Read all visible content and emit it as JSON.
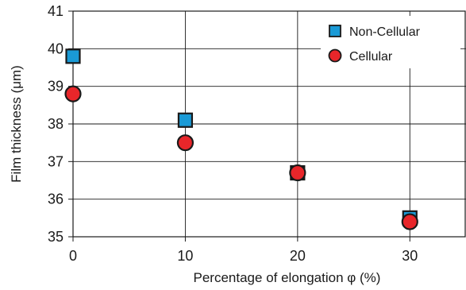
{
  "chart_data": {
    "type": "scatter",
    "xlabel": "Percentage of elongation φ (%)",
    "ylabel": "Film thickness (μm)",
    "xlim": [
      0,
      35
    ],
    "ylim": [
      35,
      41
    ],
    "x_ticks": [
      "0",
      "10",
      "20",
      "30"
    ],
    "y_ticks": [
      "35",
      "36",
      "37",
      "38",
      "39",
      "40",
      "41"
    ],
    "grid": true,
    "legend_position": "top-right",
    "series": [
      {
        "name": "Non-Cellular",
        "marker": "square",
        "color": "#1a9ad6",
        "points": [
          {
            "x": 0,
            "y": 39.8
          },
          {
            "x": 10,
            "y": 38.1
          },
          {
            "x": 20,
            "y": 36.7
          },
          {
            "x": 30,
            "y": 35.5
          }
        ]
      },
      {
        "name": "Cellular",
        "marker": "circle",
        "color": "#e8262a",
        "points": [
          {
            "x": 0,
            "y": 38.8
          },
          {
            "x": 10,
            "y": 37.5
          },
          {
            "x": 20,
            "y": 36.7
          },
          {
            "x": 30,
            "y": 35.4
          }
        ]
      }
    ]
  }
}
